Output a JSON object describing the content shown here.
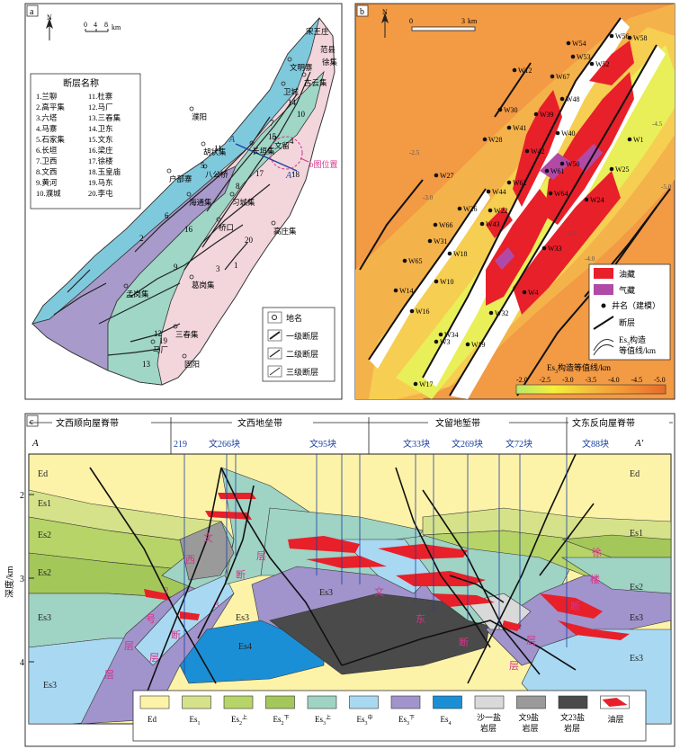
{
  "panel_a": {
    "tag": "a",
    "scale": {
      "n": "N",
      "t0": "0",
      "t1": "4",
      "t2": "8",
      "unit": "km"
    },
    "fault_title": "断层名称",
    "faults": [
      {
        "num": "1.",
        "name": "兰聊"
      },
      {
        "num": "2.",
        "name": "高平集"
      },
      {
        "num": "3.",
        "name": "六塔"
      },
      {
        "num": "4.",
        "name": "马寨"
      },
      {
        "num": "5.",
        "name": "石家集"
      },
      {
        "num": "6.",
        "name": "长垣"
      },
      {
        "num": "7.",
        "name": "卫西"
      },
      {
        "num": "8.",
        "name": "文西"
      },
      {
        "num": "9.",
        "name": "黄河"
      },
      {
        "num": "10.",
        "name": "濮城"
      },
      {
        "num": "11.",
        "name": "杜寨"
      },
      {
        "num": "12.",
        "name": "马厂"
      },
      {
        "num": "13.",
        "name": "三春集"
      },
      {
        "num": "14.",
        "name": "卫东"
      },
      {
        "num": "15.",
        "name": "文东"
      },
      {
        "num": "16.",
        "name": "梁庄"
      },
      {
        "num": "17.",
        "name": "徐楼"
      },
      {
        "num": "18.",
        "name": "玉皇庙"
      },
      {
        "num": "19.",
        "name": "马东"
      },
      {
        "num": "20.",
        "name": "李屯"
      }
    ],
    "places": [
      "濮阳",
      "卫城",
      "文明寨",
      "古云集",
      "胡状集",
      "八公桥",
      "海通集",
      "户部寨",
      "习城集",
      "桥口",
      "高庄集",
      "葛岗集",
      "孟岗集",
      "三春集",
      "马厂",
      "固阳",
      "长垣集",
      "文留"
    ],
    "place_clipped": [
      "宋王庄",
      "范县",
      "徐集"
    ],
    "fault_labels": [
      "1",
      "2",
      "3",
      "4",
      "5",
      "6",
      "7",
      "8",
      "9",
      "10",
      "11",
      "12",
      "13",
      "14",
      "15",
      "16",
      "17",
      "18",
      "19",
      "20"
    ],
    "section_a": "A",
    "section_a2": "A'",
    "b_callout": "b图位置",
    "legend": [
      "地名",
      "一级断层",
      "二级断层",
      "三级断层"
    ]
  },
  "panel_b": {
    "tag": "b",
    "scale": {
      "n": "N",
      "t0": "0",
      "t1": "3",
      "unit": "km"
    },
    "wells": [
      "W56",
      "W54",
      "W53",
      "W52",
      "W67",
      "W12",
      "W48",
      "W30",
      "W39",
      "W41",
      "W40",
      "W28",
      "W42",
      "W61",
      "W50",
      "W62",
      "W27",
      "W44",
      "W64",
      "W24",
      "W26",
      "W22",
      "W43",
      "W66",
      "W31",
      "W18",
      "W65",
      "W33",
      "W10",
      "W14",
      "W4",
      "W16",
      "W32",
      "W34",
      "W19",
      "W3",
      "W17",
      "W58",
      "W1",
      "W25"
    ],
    "contour_labels": [
      "-2.5",
      "-3.0",
      "-3.5",
      "-4.0",
      "-4.5",
      "-5.0"
    ],
    "legend": {
      "oil": "油藏",
      "gas": "气藏",
      "well": "井名（建模）",
      "fault": "断层",
      "contour1": "Es",
      "contour2": "构造",
      "contour3": "等值线/km",
      "contour_sub": "3"
    },
    "colorbar": {
      "title": "Es",
      "title_sub": "3",
      "title_rest": "构造等值线/km",
      "ticks": [
        "-2.0",
        "-2.5",
        "-3.0",
        "-3.5",
        "-4.0",
        "-4.5",
        "-5.0"
      ]
    }
  },
  "panel_c": {
    "tag": "c",
    "zones": [
      "文西顺向屋脊带",
      "文西地垒带",
      "文留地堑带",
      "文东反向屋脊带"
    ],
    "section_a": "A",
    "section_a2": "A'",
    "wells": [
      "219",
      "文266块",
      "文95块",
      "文33块",
      "文269块",
      "文72块",
      "文88块"
    ],
    "axis": {
      "label": "深度/km",
      "ticks": [
        "2",
        "3",
        "4"
      ]
    },
    "layers_left": [
      "Ed",
      "Es1",
      "Es2",
      "Es2",
      "Es3",
      "Es3"
    ],
    "layers_right": [
      "Ed",
      "Es1",
      "Es2",
      "Es3",
      "Es3"
    ],
    "middle_labels": [
      "Es3",
      "Es3",
      "Es4"
    ],
    "fault_text": {
      "wenxi": "文西断层",
      "fault2": "2号断层",
      "fault3": "3",
      "wendong": "文东断层",
      "xulou": "徐楼断层"
    },
    "legend": [
      {
        "label": "Ed",
        "color": "#fdf3a8"
      },
      {
        "label": "Es",
        "sub": "1",
        "color": "#d6e28a"
      },
      {
        "label": "Es",
        "sub": "2",
        "sup": "上",
        "color": "#b7d468"
      },
      {
        "label": "Es",
        "sub": "2",
        "sup": "下",
        "color": "#a4c75a"
      },
      {
        "label": "Es",
        "sub": "3",
        "sup": "上",
        "color": "#9fd3c4"
      },
      {
        "label": "Es",
        "sub": "3",
        "sup": "中",
        "color": "#a9d9f2"
      },
      {
        "label": "Es",
        "sub": "3",
        "sup": "下",
        "color": "#a193cb"
      },
      {
        "label": "Es",
        "sub": "4",
        "color": "#1a8fd6"
      },
      {
        "label": "沙一盐\n岩层",
        "color": "#d9d9d9"
      },
      {
        "label": "文9盐\n岩层",
        "color": "#9a9a9a"
      },
      {
        "label": "文23盐\n岩层",
        "color": "#4a4a4a"
      },
      {
        "label": "油层",
        "color": "#e8202a"
      }
    ]
  }
}
